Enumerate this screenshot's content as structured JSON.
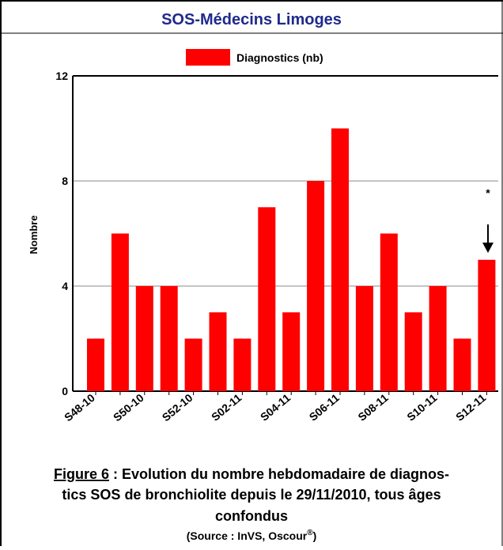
{
  "chart_data": {
    "type": "bar",
    "title": "SOS-Médecins Limoges",
    "legend": "Diagnostics (nb)",
    "ylabel": "Nombre",
    "color": "#ff0000",
    "categories": [
      "S48-10",
      null,
      "S50-10",
      null,
      "S52-10",
      null,
      "S02-11",
      null,
      "S04-11",
      null,
      "S06-11",
      null,
      "S08-11",
      null,
      "S10-11",
      null,
      "S12-11"
    ],
    "values": [
      2,
      6,
      4,
      4,
      2,
      3,
      2,
      7,
      3,
      8,
      10,
      4,
      6,
      3,
      4,
      2,
      5
    ],
    "ylim": [
      0,
      12
    ],
    "yticks": [
      0,
      4,
      8,
      12
    ],
    "grid": true,
    "annotation": "*",
    "figure_label": "Figure 6",
    "caption_lines": [
      " : Evolution du nombre hebdomadaire de diagnos-",
      "tics SOS de bronchiolite depuis le 29/11/2010, tous âges",
      "confondus"
    ],
    "source": "(Source : InVS, Oscour",
    "source_mark": "®",
    "source_end": ")"
  }
}
